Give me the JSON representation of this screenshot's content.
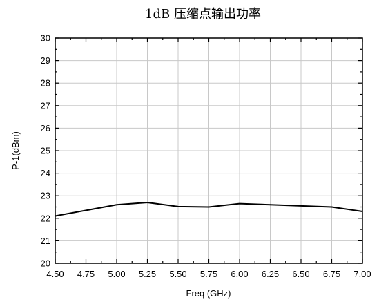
{
  "chart_data": {
    "type": "line",
    "title": "1dB 压缩点输出功率",
    "xlabel": "Freq (GHz)",
    "ylabel": "P-1(dBm)",
    "xlim": [
      4.5,
      7.0
    ],
    "ylim": [
      20,
      30
    ],
    "x_ticks": [
      "4.50",
      "4.75",
      "5.00",
      "5.25",
      "5.50",
      "5.75",
      "6.00",
      "6.25",
      "6.50",
      "6.75",
      "7.00"
    ],
    "y_ticks": [
      "20",
      "21",
      "22",
      "23",
      "24",
      "25",
      "26",
      "27",
      "28",
      "29",
      "30"
    ],
    "grid": true,
    "series": [
      {
        "x": [
          4.5,
          5.0,
          5.25,
          5.5,
          5.75,
          6.0,
          6.5,
          6.75,
          7.0
        ],
        "y": [
          22.1,
          22.6,
          22.7,
          22.52,
          22.5,
          22.65,
          22.55,
          22.5,
          22.3
        ],
        "color": "#000000"
      }
    ]
  }
}
